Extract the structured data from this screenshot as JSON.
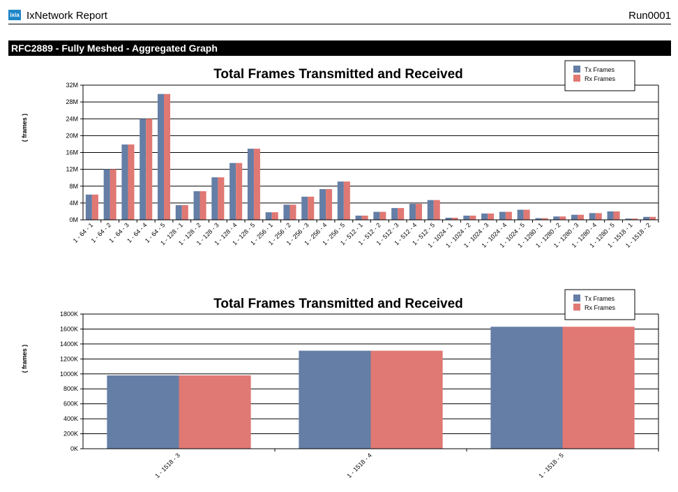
{
  "report": {
    "app_title": "IxNetwork Report",
    "logo_text": "ixia",
    "run_id": "Run0001",
    "section_title": "RFC2889 - Fully Meshed - Aggregated Graph"
  },
  "colors": {
    "tx": "#647ea6",
    "rx": "#e07873"
  },
  "chart_data": [
    {
      "type": "bar",
      "title": "Total Frames Transmitted and Received",
      "ylabel": "( frames )",
      "ylim": [
        0,
        32000000
      ],
      "yticks": [
        "0M",
        "4M",
        "8M",
        "12M",
        "16M",
        "20M",
        "24M",
        "28M",
        "32M"
      ],
      "grid": true,
      "legend_position": "top-right",
      "categories": [
        "1 - 64 - 1",
        "1 - 64 - 2",
        "1 - 64 - 3",
        "1 - 64 - 4",
        "1 - 64 - 5",
        "1 - 128 - 1",
        "1 - 128 - 2",
        "1 - 128 - 3",
        "1 - 128 - 4",
        "1 - 128 - 5",
        "1 - 256 - 1",
        "1 - 256 - 2",
        "1 - 256 - 3",
        "1 - 256 - 4",
        "1 - 256 - 5",
        "1 - 512 - 1",
        "1 - 512 - 2",
        "1 - 512 - 3",
        "1 - 512 - 4",
        "1 - 512 - 5",
        "1 - 1024 - 1",
        "1 - 1024 - 2",
        "1 - 1024 - 3",
        "1 - 1024 - 4",
        "1 - 1024 - 5",
        "1 - 1280 - 1",
        "1 - 1280 - 2",
        "1 - 1280 - 3",
        "1 - 1280 - 4",
        "1 - 1280 - 5",
        "1 - 1518 - 1",
        "1 - 1518 - 2"
      ],
      "series": [
        {
          "name": "Tx Frames",
          "values": [
            6000000,
            12000000,
            17900000,
            24000000,
            29900000,
            3500000,
            6800000,
            10100000,
            13500000,
            16900000,
            1800000,
            3600000,
            5500000,
            7300000,
            9100000,
            1000000,
            1900000,
            2800000,
            3800000,
            4700000,
            500000,
            1000000,
            1500000,
            1900000,
            2400000,
            400000,
            800000,
            1200000,
            1600000,
            2000000,
            300000,
            700000
          ]
        },
        {
          "name": "Rx Frames",
          "values": [
            6000000,
            12000000,
            17900000,
            24000000,
            29900000,
            3500000,
            6800000,
            10100000,
            13500000,
            16900000,
            1800000,
            3600000,
            5500000,
            7300000,
            9100000,
            1000000,
            1900000,
            2800000,
            3800000,
            4700000,
            500000,
            1000000,
            1500000,
            1900000,
            2400000,
            400000,
            800000,
            1200000,
            1600000,
            2000000,
            300000,
            700000
          ]
        }
      ]
    },
    {
      "type": "bar",
      "title": "Total Frames Transmitted and Received",
      "ylabel": "( frames )",
      "ylim": [
        0,
        1800000
      ],
      "yticks": [
        "0K",
        "200K",
        "400K",
        "600K",
        "800K",
        "1000K",
        "1200K",
        "1400K",
        "1600K",
        "1800K"
      ],
      "grid": true,
      "legend_position": "top-right",
      "categories": [
        "1 - 1518 - 3",
        "1 - 1518 - 4",
        "1 - 1518 - 5"
      ],
      "series": [
        {
          "name": "Tx Frames",
          "values": [
            980000,
            1310000,
            1630000
          ]
        },
        {
          "name": "Rx Frames",
          "values": [
            980000,
            1310000,
            1630000
          ]
        }
      ]
    }
  ]
}
